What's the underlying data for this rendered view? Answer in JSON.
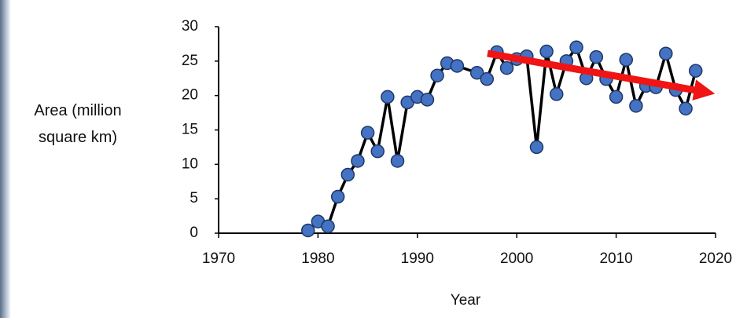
{
  "chart_data": {
    "type": "line",
    "x_label": "Year",
    "y_label": "Area (million square km)",
    "x": [
      1979,
      1980,
      1981,
      1982,
      1983,
      1984,
      1985,
      1986,
      1987,
      1988,
      1989,
      1990,
      1991,
      1992,
      1993,
      1994,
      1996,
      1997,
      1998,
      1999,
      2000,
      2001,
      2002,
      2003,
      2004,
      2005,
      2006,
      2007,
      2008,
      2009,
      2010,
      2011,
      2012,
      2013,
      2014,
      2015,
      2016,
      2017,
      2018
    ],
    "series": [
      {
        "color": "#4472c4",
        "values": [
          0.4,
          1.7,
          1.0,
          5.3,
          8.5,
          10.5,
          14.6,
          11.9,
          19.8,
          10.5,
          19.0,
          19.8,
          19.4,
          22.9,
          24.7,
          24.3,
          23.3,
          22.4,
          26.3,
          24.0,
          25.3,
          25.7,
          12.5,
          26.4,
          20.2,
          25.0,
          27.0,
          22.5,
          25.6,
          22.4,
          19.8,
          25.2,
          18.5,
          21.4,
          21.2,
          26.1,
          20.8,
          18.1,
          23.6
        ]
      }
    ],
    "xlim": [
      1970,
      2020
    ],
    "xticks": [
      1970,
      1980,
      1990,
      2000,
      2010,
      2020
    ],
    "ylim": [
      0,
      30
    ],
    "yticks": [
      0,
      5,
      10,
      15,
      20,
      25,
      30
    ],
    "grid": false
  }
}
